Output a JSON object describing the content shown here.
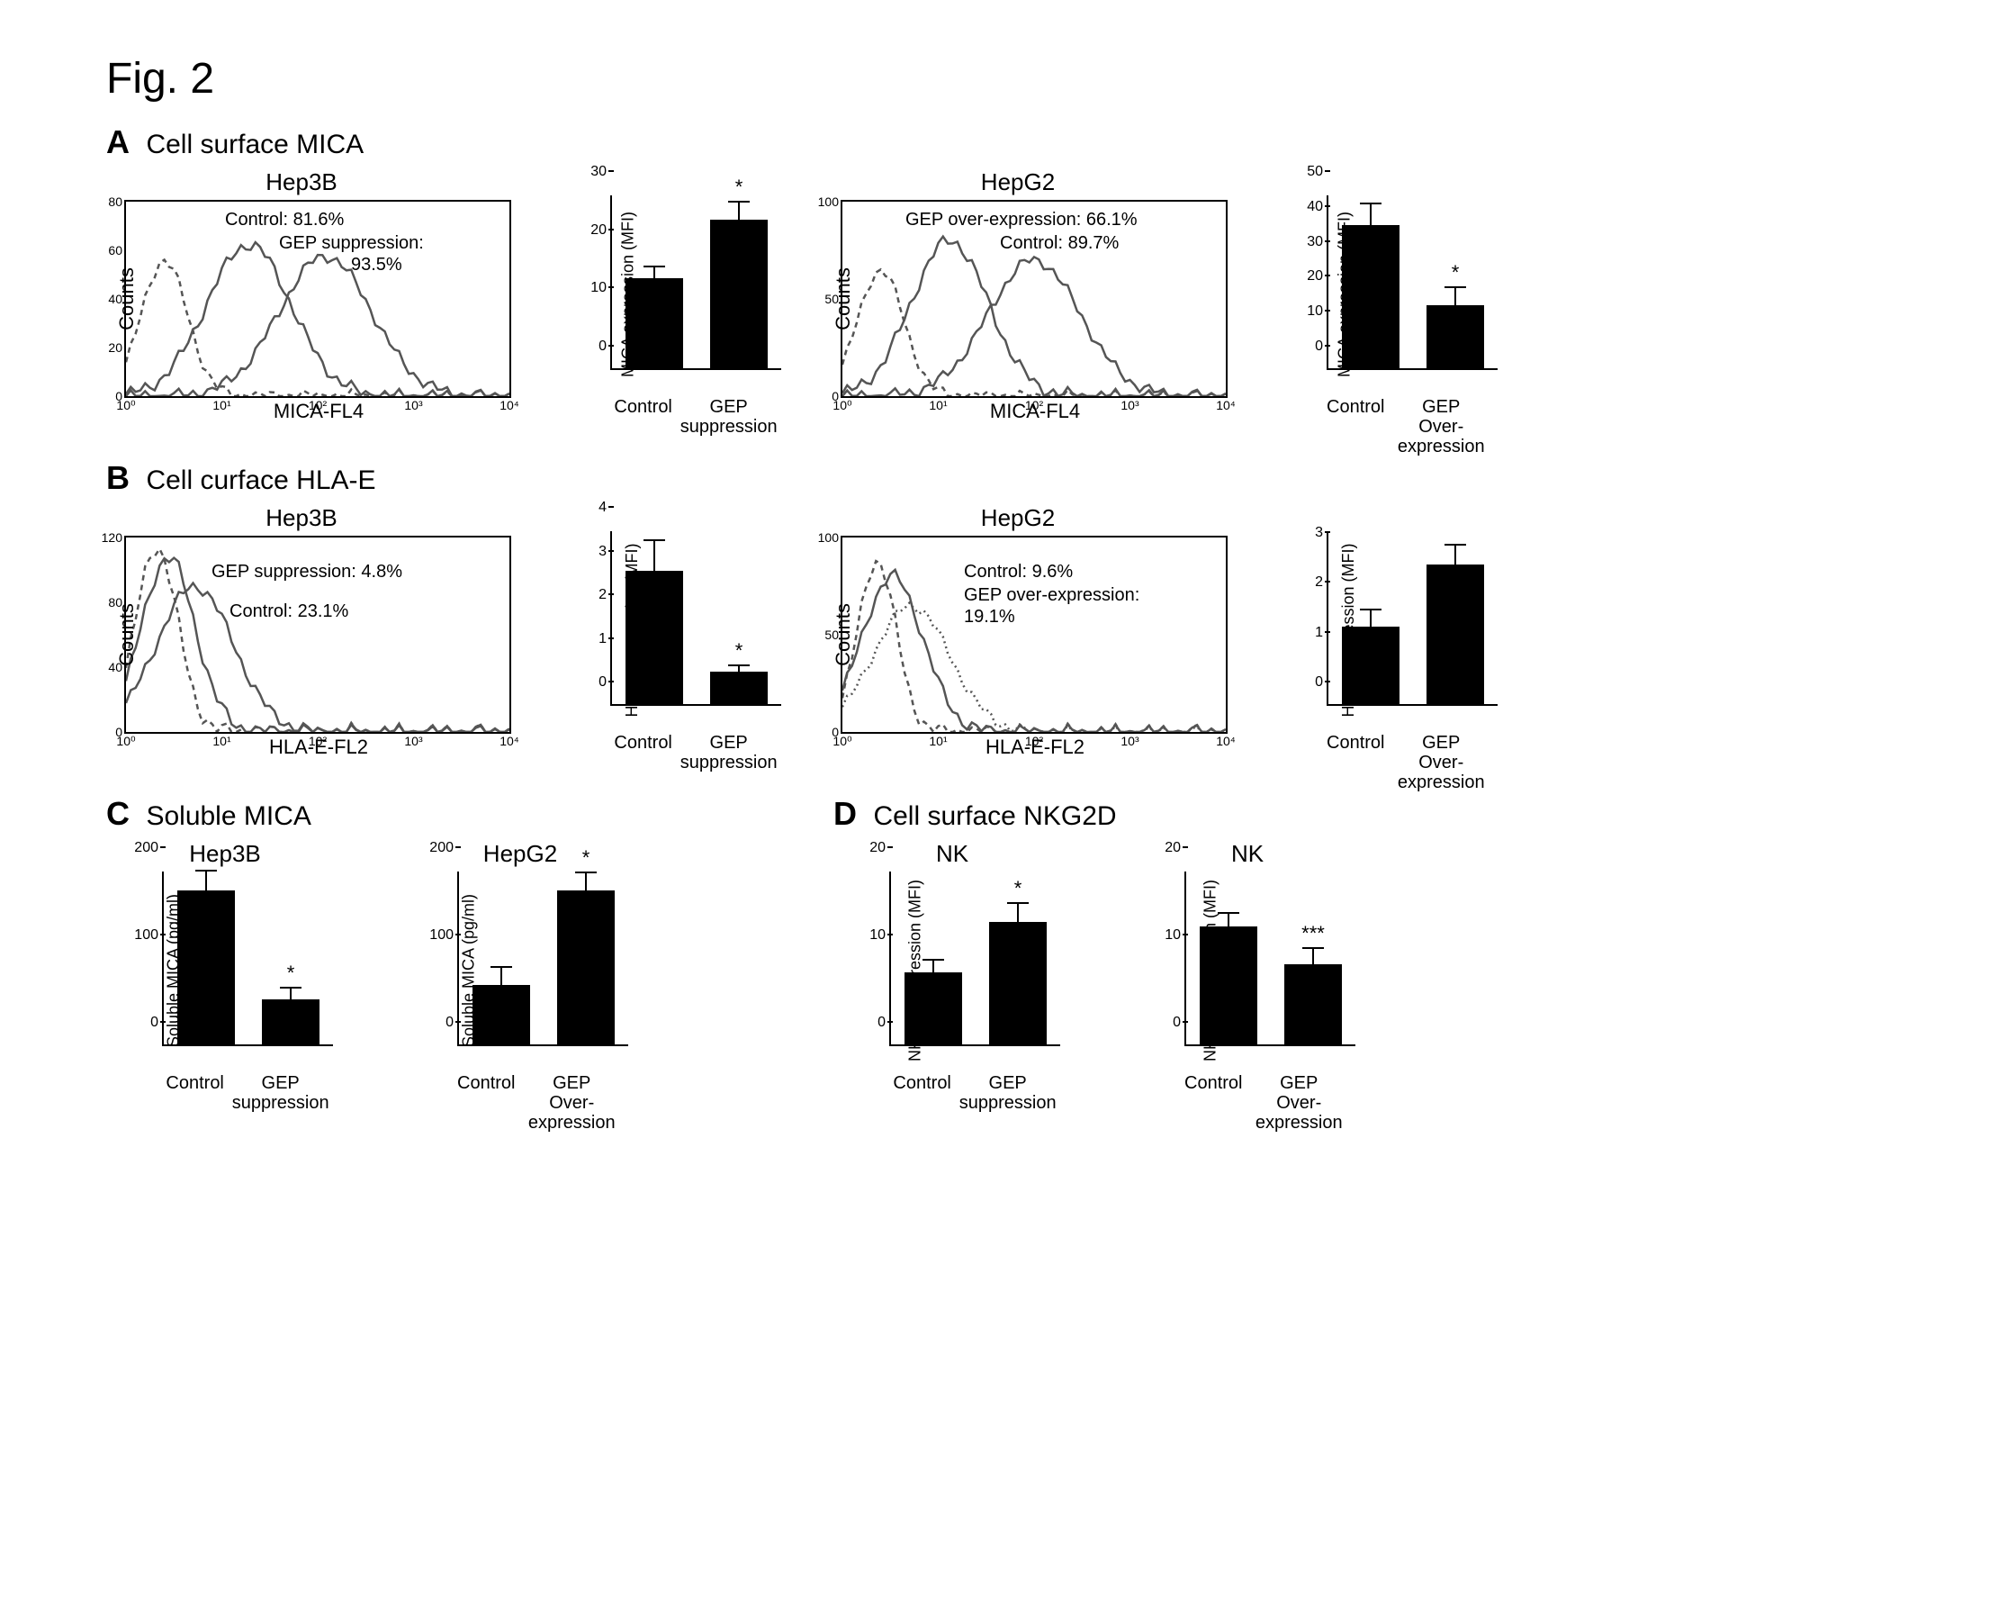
{
  "figure_label": "Fig. 2",
  "panels": {
    "A": {
      "title": "Cell surface MICA",
      "hist1": {
        "title": "Hep3B",
        "y_label": "Counts",
        "x_label": "MICA-FL4",
        "y_max": 80,
        "y_ticks": [
          0,
          20,
          40,
          60,
          80
        ],
        "x_ticks": [
          "10⁰",
          "10¹",
          "10²",
          "10³",
          "10⁴"
        ],
        "annot1": "Control: 81.6%",
        "annot2": "GEP suppression:",
        "annot3": "93.5%",
        "curves": [
          {
            "type": "dashed",
            "color": "#555555",
            "peak_x": 0.1,
            "peak_h": 0.7,
            "spread": 0.06
          },
          {
            "type": "solid",
            "color": "#555555",
            "peak_x": 0.32,
            "peak_h": 0.78,
            "spread": 0.11
          },
          {
            "type": "solid",
            "color": "#555555",
            "peak_x": 0.52,
            "peak_h": 0.72,
            "spread": 0.12
          }
        ]
      },
      "bar1": {
        "y_label": "MICA expression (MFI)",
        "y_max": 30,
        "y_ticks": [
          0,
          10,
          20,
          30
        ],
        "bars": [
          {
            "label": "Control",
            "value": 15.5,
            "err": 1.8,
            "sig": ""
          },
          {
            "label": "GEP suppression",
            "label2": "suppression",
            "short": "GEP",
            "value": 25.5,
            "err": 3.0,
            "sig": "*"
          }
        ]
      },
      "hist2": {
        "title": "HepG2",
        "y_label": "Counts",
        "x_label": "MICA-FL4",
        "y_max": 100,
        "y_ticks": [
          0,
          50,
          100
        ],
        "x_ticks": [
          "10⁰",
          "10¹",
          "10²",
          "10³",
          "10⁴"
        ],
        "annot1": "GEP over-expression: 66.1%",
        "annot2": "Control: 89.7%",
        "curves": [
          {
            "type": "dashed",
            "color": "#555555",
            "peak_x": 0.1,
            "peak_h": 0.65,
            "spread": 0.06
          },
          {
            "type": "solid",
            "color": "#555555",
            "peak_x": 0.28,
            "peak_h": 0.8,
            "spread": 0.1
          },
          {
            "type": "solid",
            "color": "#555555",
            "peak_x": 0.5,
            "peak_h": 0.7,
            "spread": 0.12
          }
        ]
      },
      "bar2": {
        "y_label": "MICA expression (MFI)",
        "y_max": 50,
        "y_ticks": [
          0,
          10,
          20,
          30,
          40,
          50
        ],
        "bars": [
          {
            "label": "Control",
            "value": 41,
            "err": 6,
            "sig": ""
          },
          {
            "label": "GEP Over-expression",
            "short": "GEP",
            "label2": "Over-expression",
            "value": 18,
            "err": 5,
            "sig": "*"
          }
        ]
      }
    },
    "B": {
      "title": "Cell curface HLA-E",
      "hist1": {
        "title": "Hep3B",
        "y_label": "Counts",
        "x_label": "HLA-E-FL2",
        "y_max": 120,
        "y_ticks": [
          0,
          40,
          80,
          120
        ],
        "x_ticks": [
          "10⁰",
          "10¹",
          "10²",
          "10³",
          "10⁴"
        ],
        "annot1": "GEP suppression: 4.8%",
        "annot2": "Control: 23.1%",
        "curves": [
          {
            "type": "dashed",
            "color": "#555555",
            "peak_x": 0.08,
            "peak_h": 0.95,
            "spread": 0.055
          },
          {
            "type": "solid",
            "color": "#555555",
            "peak_x": 0.11,
            "peak_h": 0.9,
            "spread": 0.07
          },
          {
            "type": "solid",
            "color": "#555555",
            "peak_x": 0.18,
            "peak_h": 0.75,
            "spread": 0.1
          }
        ]
      },
      "bar1": {
        "y_label": "HLA-E expression (MFI)",
        "y_max": 4,
        "y_ticks": [
          0,
          1,
          2,
          3,
          4
        ],
        "bars": [
          {
            "label": "Control",
            "value": 3.05,
            "err": 0.68,
            "sig": ""
          },
          {
            "label": "GEP suppression",
            "short": "GEP",
            "label2": "suppression",
            "value": 0.75,
            "err": 0.12,
            "sig": "*"
          }
        ]
      },
      "hist2": {
        "title": "HepG2",
        "y_label": "Counts",
        "x_label": "HLA-E-FL2",
        "y_max": 100,
        "y_ticks": [
          0,
          50,
          100
        ],
        "x_ticks": [
          "10⁰",
          "10¹",
          "10²",
          "10³",
          "10⁴"
        ],
        "annot1": "Control: 9.6%",
        "annot2": "GEP over-expression:",
        "annot3": "19.1%",
        "curves": [
          {
            "type": "dashed",
            "color": "#555555",
            "peak_x": 0.09,
            "peak_h": 0.88,
            "spread": 0.05
          },
          {
            "type": "solid",
            "color": "#555555",
            "peak_x": 0.13,
            "peak_h": 0.8,
            "spread": 0.08
          },
          {
            "type": "dotted",
            "color": "#555555",
            "peak_x": 0.18,
            "peak_h": 0.65,
            "spread": 0.1
          }
        ]
      },
      "bar2": {
        "y_label": "HLA-E expression (MFI)",
        "y_max": 3.5,
        "y_ticks": [
          0,
          1,
          2,
          3
        ],
        "bars": [
          {
            "label": "Control",
            "value": 1.55,
            "err": 0.32,
            "sig": ""
          },
          {
            "label": "GEP Over-expression",
            "short": "GEP",
            "label2": "Over-expression",
            "value": 2.8,
            "err": 0.37,
            "sig": ""
          }
        ]
      }
    },
    "C": {
      "title": "Soluble MICA",
      "bar1": {
        "title": "Hep3B",
        "y_label": "Soluble MICA (pg/ml)",
        "y_max": 200,
        "y_ticks": [
          0,
          100,
          200
        ],
        "bars": [
          {
            "label": "Control",
            "value": 176,
            "err": 22,
            "sig": ""
          },
          {
            "label": "GEP suppression",
            "short": "GEP",
            "label2": "suppression",
            "value": 52,
            "err": 12,
            "sig": "*"
          }
        ]
      },
      "bar2": {
        "title": "HepG2",
        "y_label": "Soluble MICA (pg/ml)",
        "y_max": 200,
        "y_ticks": [
          0,
          100,
          200
        ],
        "bars": [
          {
            "label": "Control",
            "value": 68,
            "err": 20,
            "sig": ""
          },
          {
            "label": "GEP Over-expression",
            "short": "GEP",
            "label2": "Over-expression",
            "value": 176,
            "err": 20,
            "sig": "*"
          }
        ]
      }
    },
    "D": {
      "title": "Cell surface NKG2D",
      "bar1": {
        "title": "NK",
        "y_label": "NKG2D expression (MFI)",
        "y_max": 20,
        "y_ticks": [
          0,
          10,
          20
        ],
        "bars": [
          {
            "label": "Control",
            "value": 8.3,
            "err": 1.3,
            "sig": ""
          },
          {
            "label": "GEP suppression",
            "short": "GEP",
            "label2": "suppression",
            "value": 14,
            "err": 2.1,
            "sig": "*"
          }
        ]
      },
      "bar2": {
        "title": "NK",
        "y_label": "NKG2D expression (MFI)",
        "y_max": 20,
        "y_ticks": [
          0,
          10,
          20
        ],
        "bars": [
          {
            "label": "Control",
            "value": 13.5,
            "err": 1.4,
            "sig": ""
          },
          {
            "label": "GEP Over-expression",
            "short": "GEP",
            "label2": "Over-expression",
            "value": 9.2,
            "err": 1.7,
            "sig": "***"
          }
        ]
      }
    }
  },
  "colors": {
    "bar_fill": "#000000",
    "axis": "#000000",
    "curve": "#555555",
    "background": "#ffffff"
  }
}
